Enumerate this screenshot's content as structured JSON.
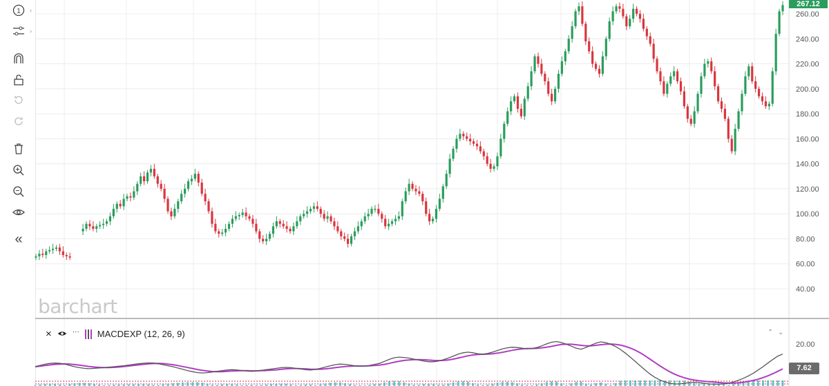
{
  "toolbar": {
    "items": [
      {
        "name": "crosshair-count-icon",
        "label": "1"
      },
      {
        "name": "drawing-tools-icon"
      },
      {
        "name": "magnet-icon"
      },
      {
        "name": "lock-open-icon"
      },
      {
        "name": "undo-icon"
      },
      {
        "name": "redo-icon"
      },
      {
        "name": "trash-icon"
      },
      {
        "name": "zoom-in-icon"
      },
      {
        "name": "zoom-out-icon"
      },
      {
        "name": "eye-icon"
      },
      {
        "name": "collapse-icon",
        "label": "«"
      }
    ]
  },
  "branding": {
    "logo_text": "barchart"
  },
  "price_badge": {
    "value": "267.12",
    "color": "#2a9d5c"
  },
  "macd": {
    "label": "MACDEXP (12, 26, 9)",
    "close_icon": "×",
    "menu_icon": "···",
    "current_value": "7.62",
    "colors": {
      "macd": "#555555",
      "signal": "#b03cc4",
      "histogram": "#3bb8b0"
    }
  },
  "chart_data": {
    "type": "candlestick",
    "y_axis": {
      "min": 40,
      "max": 267.12,
      "ticks": [
        "260.00",
        "240.00",
        "220.00",
        "200.00",
        "180.00",
        "160.00",
        "140.00",
        "120.00",
        "100.00",
        "80.00",
        "60.00",
        "40.00"
      ]
    },
    "macd_axis": {
      "ticks": [
        "20.00"
      ]
    },
    "colors": {
      "up": "#2a9d5c",
      "down": "#d9363e"
    },
    "gap_after_index": 10,
    "candles": [
      66,
      68,
      67,
      70,
      71,
      72,
      73,
      70,
      67,
      66,
      65,
      88,
      92,
      90,
      88,
      90,
      91,
      92,
      94,
      98,
      104,
      108,
      106,
      112,
      114,
      113,
      118,
      124,
      130,
      126,
      133,
      136,
      130,
      124,
      120,
      112,
      102,
      98,
      104,
      110,
      116,
      120,
      126,
      128,
      132,
      125,
      116,
      110,
      102,
      92,
      86,
      84,
      85,
      88,
      92,
      96,
      98,
      99,
      101,
      98,
      96,
      92,
      86,
      80,
      78,
      80,
      84,
      90,
      94,
      92,
      90,
      88,
      86,
      90,
      94,
      98,
      100,
      102,
      104,
      106,
      104,
      100,
      96,
      98,
      94,
      90,
      86,
      82,
      80,
      76,
      82,
      86,
      90,
      94,
      98,
      100,
      104,
      104,
      100,
      96,
      90,
      92,
      94,
      96,
      98,
      110,
      118,
      124,
      120,
      118,
      116,
      110,
      100,
      94,
      96,
      104,
      112,
      122,
      132,
      144,
      152,
      160,
      164,
      162,
      160,
      158,
      156,
      154,
      150,
      146,
      140,
      136,
      138,
      146,
      160,
      172,
      182,
      190,
      194,
      184,
      178,
      192,
      202,
      214,
      226,
      220,
      212,
      206,
      196,
      190,
      200,
      212,
      222,
      230,
      240,
      250,
      262,
      266,
      252,
      238,
      230,
      220,
      216,
      212,
      226,
      240,
      254,
      262,
      266,
      264,
      258,
      250,
      256,
      264,
      260,
      256,
      248,
      242,
      236,
      224,
      214,
      206,
      196,
      204,
      210,
      214,
      206,
      198,
      186,
      176,
      172,
      182,
      196,
      210,
      220,
      222,
      214,
      202,
      190,
      184,
      176,
      160,
      150,
      168,
      182,
      196,
      210,
      218,
      206,
      200,
      194,
      190,
      186,
      188,
      214,
      244,
      262,
      267
    ],
    "macd_values": [
      0.1,
      0.8,
      1.5,
      2.0,
      2.2,
      2.1,
      1.6,
      0.8,
      0.0,
      -0.6,
      -1.0,
      -1.2,
      -1.0,
      -0.8,
      -0.6,
      -0.3,
      0.0,
      0.3,
      0.6,
      1.0,
      1.4,
      1.8,
      2.1,
      2.3,
      2.2,
      1.8,
      1.2,
      0.6,
      0.0,
      -0.8,
      -1.6,
      -2.4,
      -3.0,
      -3.6,
      -3.8,
      -3.6,
      -3.2,
      -2.8,
      -2.4,
      -2.0,
      -1.8,
      -2.0,
      -2.3,
      -2.6,
      -2.8,
      -2.6,
      -2.2,
      -1.8,
      -1.4,
      -1.0,
      -0.6,
      -0.4,
      -0.6,
      -1.0,
      -1.4,
      -1.8,
      -2.0,
      -1.6,
      -1.0,
      -0.2,
      0.6,
      1.2,
      1.6,
      1.4,
      1.0,
      0.6,
      0.3,
      0.4,
      0.8,
      1.4,
      2.0,
      3.2,
      4.4,
      5.4,
      5.8,
      5.6,
      5.2,
      4.6,
      4.0,
      3.4,
      3.0,
      3.0,
      3.4,
      4.2,
      5.2,
      6.4,
      7.6,
      8.4,
      8.8,
      8.4,
      7.8,
      7.6,
      8.0,
      8.8,
      9.8,
      10.8,
      11.4,
      11.8,
      11.6,
      11.2,
      10.8,
      11.0,
      11.6,
      12.6,
      13.8,
      14.8,
      15.2,
      14.6,
      13.6,
      12.4,
      11.2,
      10.6,
      11.6,
      13.0,
      14.2,
      15.0,
      14.6,
      13.6,
      12.2,
      10.4,
      8.2,
      5.8,
      3.2,
      0.6,
      -2.0,
      -4.4,
      -6.4,
      -8.0,
      -9.2,
      -10.0,
      -10.4,
      -10.4,
      -10.0,
      -9.6,
      -9.4,
      -9.6,
      -10.0,
      -10.4,
      -10.6,
      -10.6,
      -10.4,
      -10.0,
      -9.2,
      -8.2,
      -7.0,
      -5.6,
      -4.0,
      -2.0,
      0.0,
      2.2,
      4.4,
      6.4,
      7.62
    ],
    "signal_values": [
      0.0,
      0.3,
      0.7,
      1.1,
      1.4,
      1.6,
      1.7,
      1.6,
      1.3,
      0.9,
      0.5,
      0.1,
      -0.2,
      -0.4,
      -0.5,
      -0.5,
      -0.4,
      -0.2,
      0.1,
      0.4,
      0.8,
      1.1,
      1.4,
      1.7,
      1.9,
      2.0,
      1.9,
      1.6,
      1.2,
      0.7,
      0.1,
      -0.5,
      -1.1,
      -1.7,
      -2.2,
      -2.6,
      -2.9,
      -3.0,
      -3.0,
      -2.8,
      -2.6,
      -2.5,
      -2.4,
      -2.4,
      -2.5,
      -2.5,
      -2.4,
      -2.3,
      -2.1,
      -1.9,
      -1.6,
      -1.3,
      -1.1,
      -1.1,
      -1.2,
      -1.3,
      -1.5,
      -1.6,
      -1.5,
      -1.3,
      -1.0,
      -0.6,
      -0.2,
      0.1,
      0.3,
      0.4,
      0.4,
      0.4,
      0.5,
      0.7,
      1.0,
      1.4,
      2.0,
      2.7,
      3.3,
      3.8,
      4.1,
      4.3,
      4.3,
      4.2,
      4.0,
      3.8,
      3.7,
      3.8,
      4.1,
      4.6,
      5.2,
      5.9,
      6.6,
      7.1,
      7.4,
      7.5,
      7.6,
      7.8,
      8.2,
      8.7,
      9.3,
      9.9,
      10.4,
      10.8,
      11.0,
      11.0,
      11.1,
      11.4,
      11.8,
      12.3,
      12.9,
      13.4,
      13.6,
      13.6,
      13.3,
      12.9,
      12.6,
      12.6,
      12.9,
      13.3,
      13.6,
      13.7,
      13.5,
      13.1,
      12.3,
      11.3,
      10.0,
      8.4,
      6.6,
      4.6,
      2.6,
      0.6,
      -1.3,
      -3.0,
      -4.5,
      -5.7,
      -6.7,
      -7.5,
      -8.1,
      -8.5,
      -8.8,
      -9.1,
      -9.3,
      -9.6,
      -9.8,
      -9.9,
      -9.9,
      -9.7,
      -9.4,
      -8.9,
      -8.3,
      -7.6,
      -6.6,
      -5.5,
      -4.2,
      -2.8,
      -1.3
    ]
  }
}
